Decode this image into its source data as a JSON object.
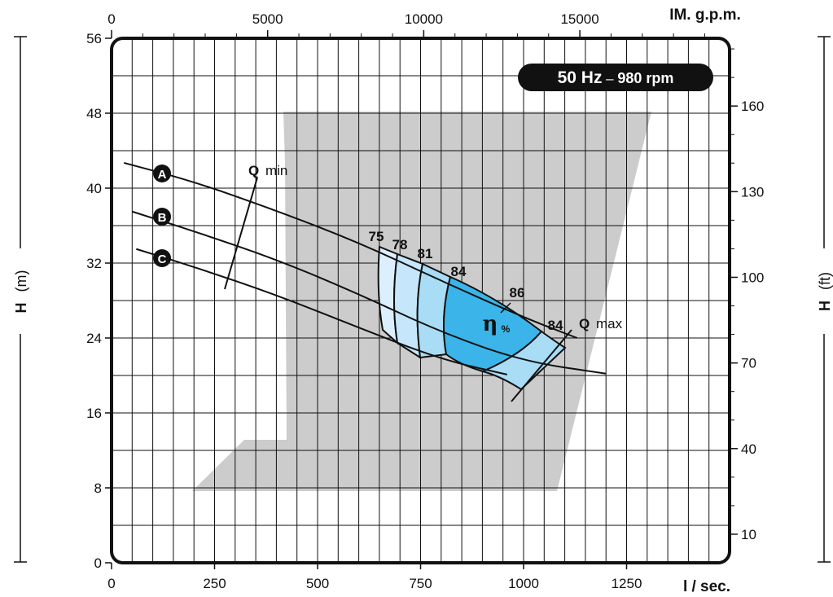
{
  "chart_data": {
    "type": "line",
    "badge": {
      "freq": "50 Hz",
      "separator": " – ",
      "speed": "980 rpm"
    },
    "x_axis": {
      "unit": "l / sec.",
      "range": [
        0,
        1500
      ],
      "ticks": [
        0,
        250,
        500,
        750,
        1000,
        1250
      ]
    },
    "x_top_axis": {
      "unit": "IM. g.p.m.",
      "ticks": [
        0,
        5000,
        10000,
        15000
      ]
    },
    "y_axis": {
      "unit_symbol": "H",
      "unit_suffix": "(m)",
      "range": [
        0,
        56
      ],
      "ticks": [
        0,
        8,
        16,
        24,
        32,
        40,
        48,
        56
      ]
    },
    "y_right_axis": {
      "unit_symbol": "H",
      "unit_suffix": "(ft)",
      "ticks": [
        10,
        40,
        70,
        100,
        130,
        160
      ]
    },
    "grid": true,
    "series": [
      {
        "name": "A",
        "x": [
          30,
          200,
          400,
          600,
          800,
          1000,
          1130
        ],
        "y": [
          42.7,
          40.7,
          37.6,
          34.2,
          30.1,
          26.2,
          24.0
        ]
      },
      {
        "name": "B",
        "x": [
          50,
          200,
          400,
          600,
          800,
          1000,
          1200
        ],
        "y": [
          37.5,
          35.4,
          32.4,
          28.7,
          24.6,
          21.5,
          20.2
        ]
      },
      {
        "name": "C",
        "x": [
          60,
          200,
          400,
          600,
          800,
          960
        ],
        "y": [
          33.5,
          31.6,
          28.6,
          25.1,
          21.7,
          20.1
        ]
      }
    ],
    "efficiency_labels": [
      "75",
      "78",
      "81",
      "84",
      "86",
      "84"
    ],
    "efficiency_symbol": "η",
    "efficiency_unit": "%",
    "q_min_label": {
      "bold": "Q",
      "text": "min"
    },
    "q_max_label": {
      "bold": "Q",
      "text": "max"
    },
    "colors": {
      "band_light": "#dcefff",
      "band_mid": "#a9dcf5",
      "band_dark": "#3bb5e9",
      "watermark": "#cccccc",
      "curve": "#111111",
      "grid": "#111111"
    }
  }
}
